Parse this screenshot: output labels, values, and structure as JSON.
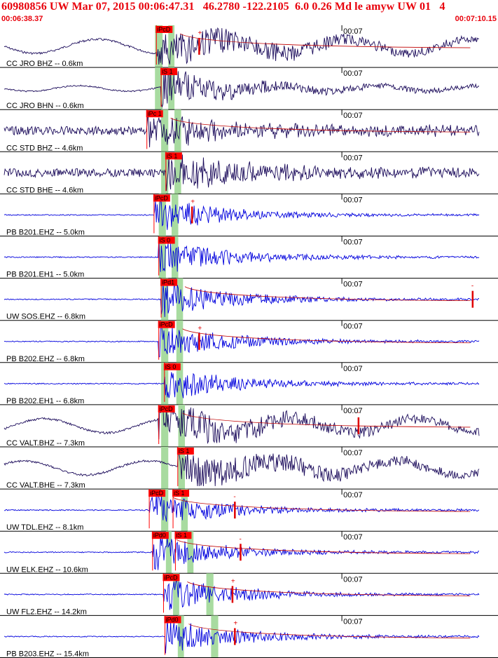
{
  "header": {
    "title": "60980856 UW Mar 07, 2015 00:06:47.31   46.2780 -122.2105  6.0 0.26 Md le amyw UW 01   4",
    "start_time": "00:06:38.37",
    "end_time": "00:07:10.15"
  },
  "colors": {
    "header_text": "#e8000b",
    "pick_box": "#ff0000",
    "trace_dark": "#1a0a5a",
    "trace_blue": "#0000dd",
    "theory_band": "#a8dba0"
  },
  "minute_mark_label": "00:07",
  "panels": [
    {
      "label": "CC JRO BHZ -- 0.6km",
      "minute": "00:07",
      "trace": "dark",
      "style": "wave",
      "picks": [
        {
          "text": "iPcD",
          "p": 0.32
        }
      ],
      "band": [
        0.317,
        0.333,
        0.345,
        0.358
      ],
      "marker": {
        "t": 0.41,
        "sym": "+"
      },
      "coda": true
    },
    {
      "label": "CC JRO BHN -- 0.6km",
      "minute": "00:07",
      "trace": "dark",
      "style": "quiet",
      "picks": [
        {
          "text": "iS 1",
          "p": 0.33
        }
      ],
      "band": [
        0.317,
        0.333,
        0.345,
        0.358
      ],
      "marker": null,
      "coda": false
    },
    {
      "label": "CC STD BHZ -- 4.6km",
      "minute": "00:07",
      "trace": "dark",
      "style": "noisy",
      "picks": [
        {
          "text": "iPc 1",
          "p": 0.3
        }
      ],
      "band": [
        0.33,
        0.345,
        0.358,
        0.372
      ],
      "marker": null,
      "coda": true
    },
    {
      "label": "CC STD BHE -- 4.6km",
      "minute": "00:07",
      "trace": "dark",
      "style": "noisy",
      "picks": [
        {
          "text": "iS 1",
          "p": 0.34
        }
      ],
      "band": [
        0.33,
        0.345,
        0.358,
        0.372
      ],
      "marker": null,
      "coda": false
    },
    {
      "label": "PB B201.EHZ -- 5.0km",
      "minute": "00:07",
      "trace": "blue",
      "style": "flat",
      "picks": [
        {
          "text": "iPcD",
          "p": 0.315
        }
      ],
      "band": [
        0.325,
        0.34,
        0.352,
        0.366
      ],
      "marker": {
        "t": 0.395,
        "sym": "+"
      },
      "coda": false
    },
    {
      "label": "PB B201.EH1 -- 5.0km",
      "minute": "00:07",
      "trace": "blue",
      "style": "flat",
      "picks": [
        {
          "text": "iS 0",
          "p": 0.325
        }
      ],
      "band": [
        0.325,
        0.34,
        0.352,
        0.366
      ],
      "marker": null,
      "coda": false
    },
    {
      "label": "UW SOS.EHZ -- 6.8km",
      "minute": "00:07",
      "trace": "blue",
      "style": "flat",
      "picks": [
        {
          "text": "iPd1",
          "p": 0.33
        }
      ],
      "band": [
        0.33,
        0.345,
        0.362,
        0.376
      ],
      "marker": {
        "t": 0.985,
        "sym": "-"
      },
      "coda": true
    },
    {
      "label": "PB B202.EHZ -- 6.8km",
      "minute": "00:07",
      "trace": "blue",
      "style": "flat",
      "picks": [
        {
          "text": "iPcD",
          "p": 0.325
        }
      ],
      "band": [
        0.33,
        0.345,
        0.362,
        0.376
      ],
      "marker": {
        "t": 0.41,
        "sym": "+"
      },
      "coda": true
    },
    {
      "label": "PB B202.EH1 -- 6.8km",
      "minute": "00:07",
      "trace": "blue",
      "style": "flat",
      "picks": [
        {
          "text": "iS 0",
          "p": 0.337
        }
      ],
      "band": [
        0.33,
        0.345,
        0.362,
        0.376
      ],
      "marker": null,
      "coda": false
    },
    {
      "label": "CC VALT.BHZ -- 7.3km",
      "minute": "00:07",
      "trace": "dark",
      "style": "wave",
      "picks": [
        {
          "text": "iPcD",
          "p": 0.325
        }
      ],
      "band": [
        0.33,
        0.345,
        0.366,
        0.38
      ],
      "marker": {
        "t": 0.745,
        "sym": "-"
      },
      "coda": true
    },
    {
      "label": "CC VALT.BHE -- 7.3km",
      "minute": "00:07",
      "trace": "dark",
      "style": "wave",
      "picks": [
        {
          "text": "iS 1",
          "p": 0.365
        }
      ],
      "band": [
        0.33,
        0.345,
        0.366,
        0.38
      ],
      "marker": null,
      "coda": false
    },
    {
      "label": "UW TDL.EHZ -- 8.1km",
      "minute": "00:07",
      "trace": "blue",
      "style": "flat",
      "picks": [
        {
          "text": "iPcD",
          "p": 0.305
        },
        {
          "text": "iS 1",
          "p": 0.355
        }
      ],
      "band": [
        0.33,
        0.345,
        0.372,
        0.386
      ],
      "marker": {
        "t": 0.485,
        "sym": "-"
      },
      "coda": true
    },
    {
      "label": "UW ELK.EHZ -- 10.6km",
      "minute": "00:07",
      "trace": "blue",
      "style": "flat",
      "picks": [
        {
          "text": "iPd0",
          "p": 0.312
        },
        {
          "text": "iS 1",
          "p": 0.36
        }
      ],
      "band": [
        0.34,
        0.352,
        0.385,
        0.398
      ],
      "marker": {
        "t": 0.497,
        "sym": "-"
      },
      "coda": true
    },
    {
      "label": "UW FL2.EHZ -- 14.2km",
      "minute": "00:07",
      "trace": "blue",
      "style": "flat",
      "picks": [
        {
          "text": "iPcD",
          "p": 0.335
        }
      ],
      "band": [
        0.355,
        0.368,
        0.425,
        0.44
      ],
      "marker": {
        "t": 0.48,
        "sym": "+"
      },
      "coda": true
    },
    {
      "label": "PB B203.EHZ -- 15.4km",
      "minute": "00:07",
      "trace": "blue",
      "style": "flat",
      "picks": [
        {
          "text": "iPd0",
          "p": 0.338
        }
      ],
      "band": [
        0.365,
        0.378,
        0.435,
        0.45
      ],
      "marker": {
        "t": 0.485,
        "sym": "+"
      },
      "coda": true
    }
  ]
}
